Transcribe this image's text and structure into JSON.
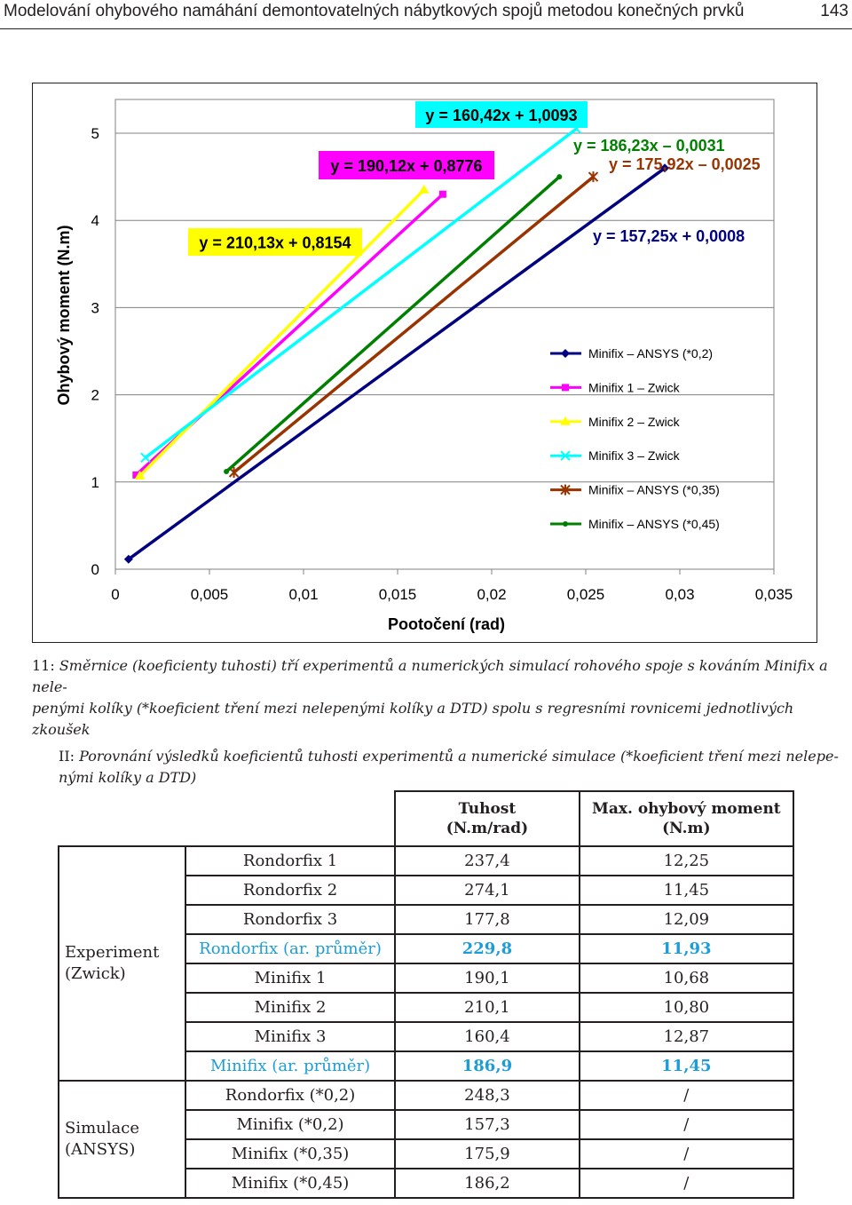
{
  "header": {
    "title": "Modelování ohybového namáhání demontovatelných nábytkových spojů metodou konečných prvků",
    "page_number": "143"
  },
  "chart_data": {
    "type": "line",
    "ylabel": "Ohybový moment (N.m)",
    "xlabel": "Pootočení (rad)",
    "xlim": [
      0,
      0.035
    ],
    "ylim": [
      0,
      5
    ],
    "x_ticks": [
      "0",
      "0,005",
      "0,01",
      "0,015",
      "0,02",
      "0,025",
      "0,03",
      "0,035"
    ],
    "y_ticks": [
      "0",
      "1",
      "2",
      "3",
      "4",
      "5"
    ],
    "grid": "horizontal",
    "legend_position": "right",
    "series": [
      {
        "name": "Minifix – ANSYS (*0,2)",
        "color": "#000080",
        "marker": "diamond",
        "x": [
          0.0007,
          0.0292
        ],
        "y": [
          0.114,
          4.6
        ]
      },
      {
        "name": "Minifix 1 – Zwick",
        "color": "#ff00ff",
        "marker": "square",
        "x": [
          0.0011,
          0.0174
        ],
        "y": [
          1.08,
          4.3
        ]
      },
      {
        "name": "Minifix 2 – Zwick",
        "color": "#ffff00",
        "marker": "triangle",
        "x": [
          0.0013,
          0.0164
        ],
        "y": [
          1.07,
          4.35
        ]
      },
      {
        "name": "Minifix 3 – Zwick",
        "color": "#00ffff",
        "marker": "x",
        "x": [
          0.0016,
          0.0245
        ],
        "y": [
          1.28,
          5.05
        ]
      },
      {
        "name": "Minifix – ANSYS (*0,35)",
        "color": "#993300",
        "marker": "star",
        "x": [
          0.0063,
          0.0254
        ],
        "y": [
          1.11,
          4.5
        ]
      },
      {
        "name": "Minifix – ANSYS (*0,45)",
        "color": "#008000",
        "marker": "circle",
        "x": [
          0.0059,
          0.0236
        ],
        "y": [
          1.12,
          4.5
        ]
      }
    ],
    "annotations": [
      {
        "text": "y = 160,42x + 1,0093",
        "bg": "#00ffff",
        "color": "#000000"
      },
      {
        "text": "y = 190,12x + 0,8776",
        "bg": "#ff00ff",
        "color": "#000000"
      },
      {
        "text": "y = 186,23x – 0,0031",
        "bg": "",
        "color": "#008000"
      },
      {
        "text": "y = 175,92x – 0,0025",
        "bg": "",
        "color": "#993300"
      },
      {
        "text": "y = 210,13x + 0,8154",
        "bg": "#ffff00",
        "color": "#000000"
      },
      {
        "text": "y = 157,25x + 0,0008",
        "bg": "",
        "color": "#000080"
      }
    ]
  },
  "figure_caption": {
    "number": "11:",
    "text_line1": "Směrnice (koeficienty tuhosti) tří experimentů a numerických simulací rohového spoje s kováním Minifix a nele-",
    "text_line2": "penými kolíky (*koeficient tření mezi nelepenými kolíky a DTD) spolu s regresními rovnicemi jednotlivých zkoušek"
  },
  "table_caption": {
    "number": "II:",
    "text_line1": "Porovnání výsledků koeficientů tuhosti experimentů a numerické simulace (*koeficient tření mezi nelepe-",
    "text_line2": "nými kolíky a DTD)"
  },
  "table": {
    "col_headers": [
      {
        "line1": "Tuhost",
        "line2": "(N.m/rad)"
      },
      {
        "line1": "Max. ohybový moment",
        "line2": "(N.m)"
      }
    ],
    "groups": [
      {
        "line1": "Experiment",
        "line2": "(Zwick)",
        "rows": [
          {
            "name": "Rondorfix 1",
            "stiffness": "237,4",
            "moment": "12,25",
            "highlight": false
          },
          {
            "name": "Rondorfix 2",
            "stiffness": "274,1",
            "moment": "11,45",
            "highlight": false
          },
          {
            "name": "Rondorfix 3",
            "stiffness": "177,8",
            "moment": "12,09",
            "highlight": false
          },
          {
            "name": "Rondorfix (ar. průměr)",
            "stiffness": "229,8",
            "moment": "11,93",
            "highlight": true
          },
          {
            "name": "Minifix 1",
            "stiffness": "190,1",
            "moment": "10,68",
            "highlight": false
          },
          {
            "name": "Minifix 2",
            "stiffness": "210,1",
            "moment": "10,80",
            "highlight": false
          },
          {
            "name": "Minifix 3",
            "stiffness": "160,4",
            "moment": "12,87",
            "highlight": false
          },
          {
            "name": "Minifix (ar. průměr)",
            "stiffness": "186,9",
            "moment": "11,45",
            "highlight": true
          }
        ]
      },
      {
        "line1": "Simulace",
        "line2": "(ANSYS)",
        "rows": [
          {
            "name": "Rondorfix (*0,2)",
            "stiffness": "248,3",
            "moment": "/",
            "highlight": false
          },
          {
            "name": "Minifix (*0,2)",
            "stiffness": "157,3",
            "moment": "/",
            "highlight": false
          },
          {
            "name": "Minifix (*0,35)",
            "stiffness": "175,9",
            "moment": "/",
            "highlight": false
          },
          {
            "name": "Minifix (*0,45)",
            "stiffness": "186,2",
            "moment": "/",
            "highlight": false
          }
        ]
      }
    ]
  }
}
